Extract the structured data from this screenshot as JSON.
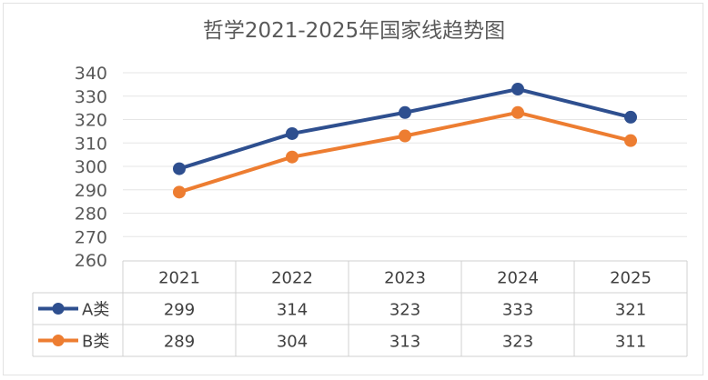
{
  "chart_data": {
    "type": "line",
    "title": "哲学2021-2025年国家线趋势图",
    "categories": [
      "2021",
      "2022",
      "2023",
      "2024",
      "2025"
    ],
    "series": [
      {
        "name": "A类",
        "values": [
          299,
          314,
          323,
          333,
          321
        ],
        "color": "#2e4f8f"
      },
      {
        "name": "B类",
        "values": [
          289,
          304,
          313,
          323,
          311
        ],
        "color": "#ed7d31"
      }
    ],
    "ylim": [
      260,
      340
    ],
    "yticks": [
      260,
      270,
      280,
      290,
      300,
      310,
      320,
      330,
      340
    ],
    "grid": true,
    "legend": "data-table",
    "data_table": true
  }
}
